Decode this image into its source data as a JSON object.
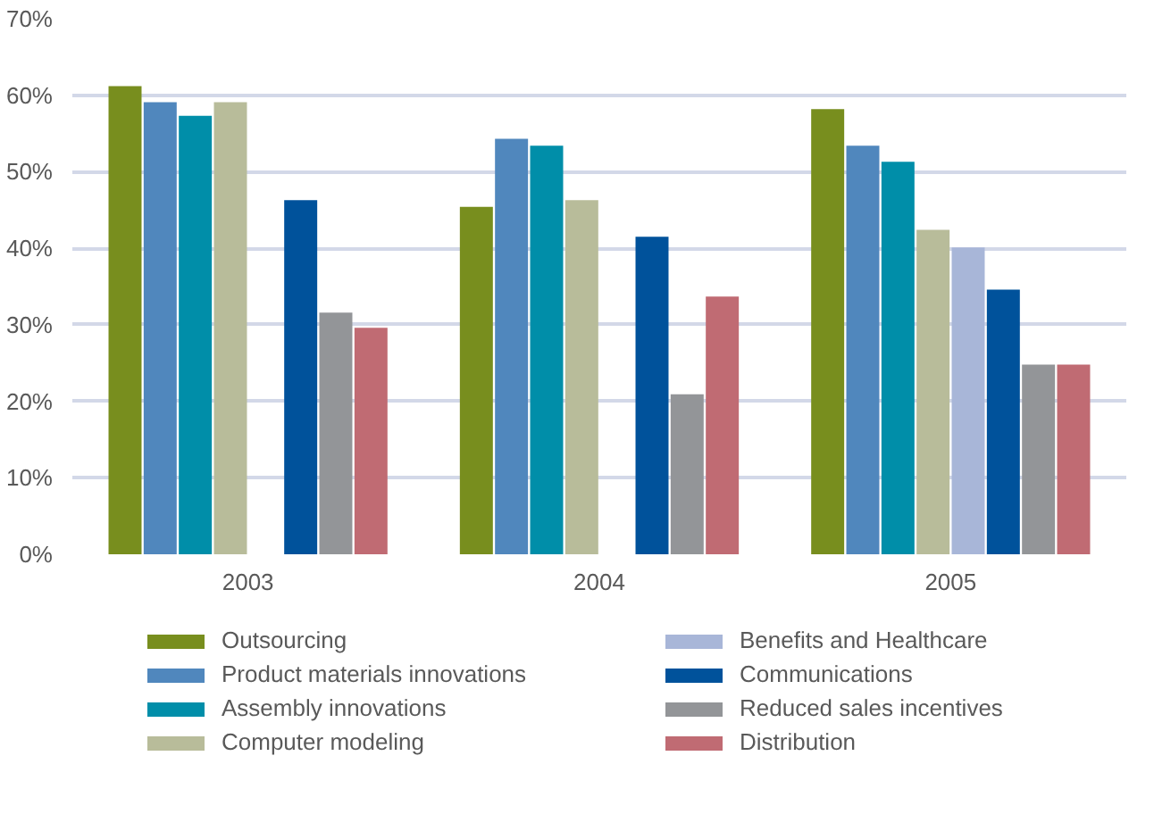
{
  "chart_data": {
    "type": "bar",
    "categories": [
      "2003",
      "2004",
      "2005"
    ],
    "series": [
      {
        "name": "Outsourcing",
        "color": "#788e1e",
        "values": [
          61.2,
          45.4,
          58.2
        ]
      },
      {
        "name": "Product materials innovations",
        "color": "#5087bd",
        "values": [
          59.1,
          54.3,
          53.4
        ]
      },
      {
        "name": "Assembly innovations",
        "color": "#008ea9",
        "values": [
          57.3,
          53.4,
          51.3
        ]
      },
      {
        "name": "Computer modeling",
        "color": "#b8bc9a",
        "values": [
          59.1,
          46.3,
          42.4
        ]
      },
      {
        "name": "Benefits and Healthcare",
        "color": "#a8b6d8",
        "values": [
          null,
          null,
          40.1
        ]
      },
      {
        "name": "Communications",
        "color": "#00529b",
        "values": [
          46.3,
          41.5,
          34.6
        ]
      },
      {
        "name": "Reduced sales incentives",
        "color": "#939598",
        "values": [
          31.6,
          20.9,
          24.8
        ]
      },
      {
        "name": "Distribution",
        "color": "#c06b73",
        "values": [
          29.6,
          33.7,
          24.8
        ]
      }
    ],
    "ylim": [
      0,
      70
    ],
    "yticks": [
      {
        "value": 0,
        "label": "0%"
      },
      {
        "value": 10,
        "label": "10%"
      },
      {
        "value": 20,
        "label": "20%"
      },
      {
        "value": 30,
        "label": "30%"
      },
      {
        "value": 40,
        "label": "40%"
      },
      {
        "value": 50,
        "label": "50%"
      },
      {
        "value": 60,
        "label": "60%"
      },
      {
        "value": 70,
        "label": "70%"
      }
    ],
    "grid": "y",
    "legend": "bottom"
  }
}
